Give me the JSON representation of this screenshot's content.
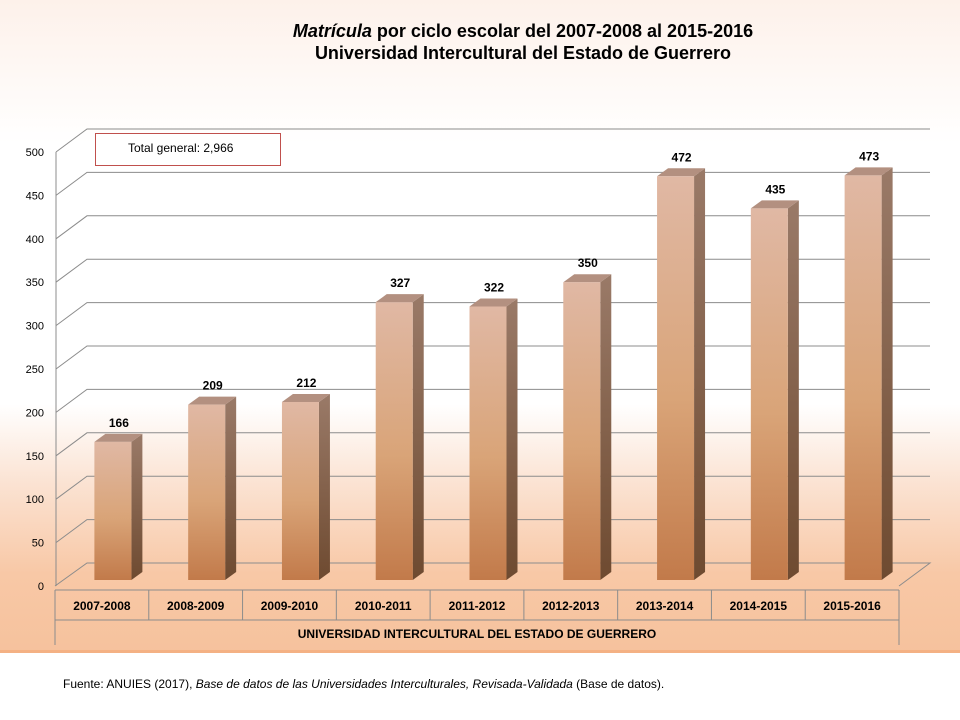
{
  "header": {
    "title_italic": "Matrícula",
    "title_rest": " por  ciclo escolar del 2007-2008 al  2015-2016",
    "subtitle": "Universidad Intercultural del Estado de Guerrero"
  },
  "annotation": {
    "total_label": "Total general: 2,966"
  },
  "source": {
    "prefix": "Fuente: ANUIES (2017),  ",
    "italic": "Base de datos de las Universidades  Interculturales, Revisada-Validada",
    "suffix": "  (Base de datos)."
  },
  "colors": {
    "bar_top": "#e0b8a4",
    "bar_mid": "#d9a478",
    "bar_bottom": "#c27a4a",
    "bar_side": "#8a6a58",
    "bar_cap": "#b39080",
    "grid": "#8c8c8c"
  },
  "chart_data": {
    "type": "bar",
    "title": "Matrícula por ciclo escolar del 2007-2008 al 2015-2016",
    "subtitle": "Universidad Intercultural del Estado de Guerrero",
    "xlabel": "UNIVERSIDAD INTERCULTURAL DEL ESTADO DE GUERRERO",
    "ylabel": "",
    "categories": [
      "2007-2008",
      "2008-2009",
      "2009-2010",
      "2010-2011",
      "2011-2012",
      "2012-2013",
      "2013-2014",
      "2014-2015",
      "2015-2016"
    ],
    "values": [
      166,
      209,
      212,
      327,
      322,
      350,
      472,
      435,
      473
    ],
    "ylim": [
      0,
      500
    ],
    "yticks": [
      0,
      50,
      100,
      150,
      200,
      250,
      300,
      350,
      400,
      450,
      500
    ],
    "grid": true,
    "style": "3d-column"
  }
}
